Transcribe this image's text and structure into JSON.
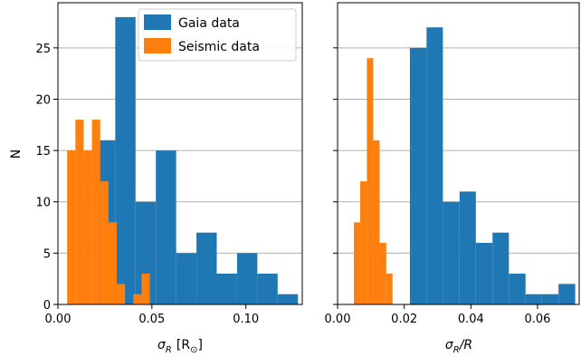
{
  "chart_data": [
    {
      "type": "bar",
      "histogram": true,
      "xlabel_base": "σ",
      "xlabel_sub": "R",
      "xlabel_unit": "[R",
      "xlabel_unit_sub": "⊙",
      "xlabel_unit_close": "]",
      "ylabel": "N",
      "xlim": [
        0.0,
        0.13
      ],
      "ylim": [
        0,
        29.4
      ],
      "xticks": [
        0.0,
        0.05,
        0.1
      ],
      "xtick_labels": [
        "0.00",
        "0.05",
        "0.10"
      ],
      "yticks": [
        0,
        5,
        10,
        15,
        20,
        25
      ],
      "ytick_labels": [
        "0",
        "5",
        "10",
        "15",
        "20",
        "25"
      ],
      "grid": "y",
      "legend_placement": "top-right",
      "series": [
        {
          "name": "Gaia data",
          "color": "#1f77b4",
          "bin_edges": [
            0.0218,
            0.0305,
            0.0413,
            0.0521,
            0.0629,
            0.0737,
            0.0845,
            0.0953,
            0.1061,
            0.1169,
            0.1277
          ],
          "values": [
            16,
            28,
            10,
            15,
            5,
            7,
            3,
            5,
            3,
            1
          ],
          "draw_order": 0
        },
        {
          "name": "Seismic data",
          "color": "#ff7f0e",
          "bin_edges": [
            0.0049,
            0.0093,
            0.0137,
            0.0181,
            0.0225,
            0.0269,
            0.0313,
            0.0357,
            0.0401,
            0.0445,
            0.0489
          ],
          "values": [
            15,
            18,
            15,
            18,
            12,
            8,
            2,
            0,
            1,
            3
          ],
          "draw_order": 1
        }
      ]
    },
    {
      "type": "bar",
      "histogram": true,
      "xlabel_base": "σ",
      "xlabel_sub": "R",
      "xlabel_suffix": "/R",
      "ylabel": "",
      "xlim": [
        0.0,
        0.0725
      ],
      "ylim": [
        0,
        29.4
      ],
      "xticks": [
        0.0,
        0.02,
        0.04,
        0.06
      ],
      "xtick_labels": [
        "0.00",
        "0.02",
        "0.04",
        "0.06"
      ],
      "yticks": [
        0,
        5,
        10,
        15,
        20,
        25
      ],
      "ytick_labels": [],
      "grid": "y",
      "series": [
        {
          "name": "Seismic data",
          "color": "#ff7f0e",
          "bin_edges": [
            0.0049,
            0.0068,
            0.0088,
            0.0107,
            0.0126,
            0.0146,
            0.0165,
            0.0184,
            0.0204,
            0.0223,
            0.0242
          ],
          "values": [
            8,
            12,
            24,
            16,
            6,
            3,
            0,
            0,
            0,
            0
          ],
          "draw_order": 0
        },
        {
          "name": "Gaia data",
          "color": "#1f77b4",
          "bin_edges": [
            0.0217,
            0.0267,
            0.0316,
            0.0366,
            0.0415,
            0.0465,
            0.0514,
            0.0564,
            0.0613,
            0.0663,
            0.0713
          ],
          "values": [
            25,
            27,
            10,
            11,
            6,
            7,
            3,
            1,
            1,
            2
          ],
          "draw_order": 1
        }
      ]
    }
  ]
}
